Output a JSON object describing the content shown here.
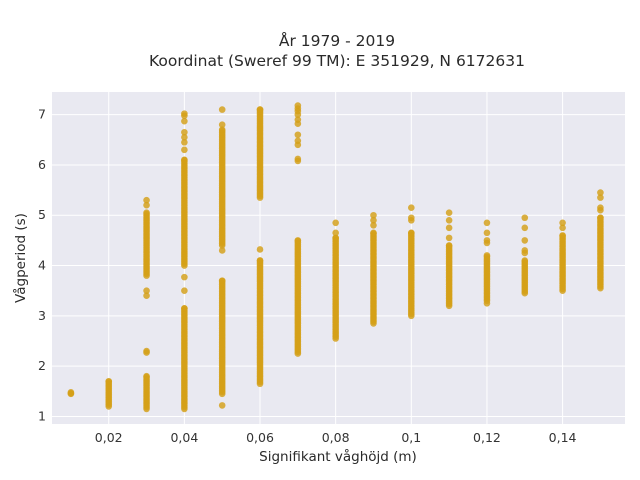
{
  "chart_data": {
    "type": "scatter",
    "title_line1": "År 1979 - 2019",
    "title_line2": "Koordinat (Sweref 99 TM): E 351929, N 6172631",
    "xlabel": "Signifikant våghöjd (m)",
    "ylabel": "Vågperiod (s)",
    "xlim": [
      0.005,
      0.1565
    ],
    "ylim": [
      0.85,
      7.45
    ],
    "xticks": [
      {
        "value": 0.02,
        "label": "0,02"
      },
      {
        "value": 0.04,
        "label": "0,04"
      },
      {
        "value": 0.06,
        "label": "0,06"
      },
      {
        "value": 0.08,
        "label": "0,08"
      },
      {
        "value": 0.1,
        "label": "0,1"
      },
      {
        "value": 0.12,
        "label": "0,12"
      },
      {
        "value": 0.14,
        "label": "0,14"
      }
    ],
    "yticks": [
      {
        "value": 1,
        "label": "1"
      },
      {
        "value": 2,
        "label": "2"
      },
      {
        "value": 3,
        "label": "3"
      },
      {
        "value": 4,
        "label": "4"
      },
      {
        "value": 5,
        "label": "5"
      },
      {
        "value": 6,
        "label": "6"
      },
      {
        "value": 7,
        "label": "7"
      }
    ],
    "grid": true,
    "marker_color": "#d4a017",
    "plot_bgcolor": "#e9e9f1",
    "grid_color": "#ffffff",
    "columns": [
      {
        "x": 0.01,
        "ranges": [
          [
            1.45,
            1.48
          ]
        ],
        "isolated": [
          1.46
        ]
      },
      {
        "x": 0.02,
        "ranges": [
          [
            1.2,
            1.7
          ]
        ],
        "isolated": []
      },
      {
        "x": 0.03,
        "ranges": [
          [
            1.15,
            1.8
          ],
          [
            3.8,
            5.05
          ]
        ],
        "isolated": [
          2.27,
          2.3,
          3.4,
          3.5,
          5.2,
          5.3
        ]
      },
      {
        "x": 0.04,
        "ranges": [
          [
            1.15,
            3.15
          ],
          [
            4.0,
            6.1
          ]
        ],
        "isolated": [
          3.5,
          3.77,
          6.3,
          6.45,
          6.55,
          6.65,
          6.87,
          6.98,
          7.02
        ]
      },
      {
        "x": 0.05,
        "ranges": [
          [
            1.45,
            3.7
          ],
          [
            4.4,
            6.7
          ]
        ],
        "isolated": [
          1.22,
          4.3,
          6.8,
          7.1
        ]
      },
      {
        "x": 0.06,
        "ranges": [
          [
            1.65,
            4.1
          ],
          [
            5.35,
            7.1
          ]
        ],
        "isolated": [
          4.32
        ]
      },
      {
        "x": 0.07,
        "ranges": [
          [
            2.25,
            4.5
          ]
        ],
        "isolated": [
          6.08,
          6.12,
          6.4,
          6.48,
          6.6,
          6.82,
          6.9,
          7.0,
          7.07,
          7.12,
          7.18
        ]
      },
      {
        "x": 0.08,
        "ranges": [
          [
            2.55,
            4.55
          ]
        ],
        "isolated": [
          4.65,
          4.85
        ]
      },
      {
        "x": 0.09,
        "ranges": [
          [
            2.85,
            4.65
          ]
        ],
        "isolated": [
          4.8,
          4.9,
          5.0
        ]
      },
      {
        "x": 0.1,
        "ranges": [
          [
            3.0,
            4.65
          ]
        ],
        "isolated": [
          4.9,
          4.95,
          5.15
        ]
      },
      {
        "x": 0.11,
        "ranges": [
          [
            3.2,
            4.4
          ]
        ],
        "isolated": [
          4.55,
          4.75,
          4.9,
          5.05
        ]
      },
      {
        "x": 0.12,
        "ranges": [
          [
            3.3,
            4.2
          ]
        ],
        "isolated": [
          3.25,
          4.45,
          4.5,
          4.65,
          4.85
        ]
      },
      {
        "x": 0.13,
        "ranges": [
          [
            3.45,
            4.1
          ]
        ],
        "isolated": [
          4.25,
          4.3,
          4.5,
          4.75,
          4.95
        ]
      },
      {
        "x": 0.14,
        "ranges": [
          [
            3.5,
            4.6
          ]
        ],
        "isolated": [
          4.75,
          4.85
        ]
      },
      {
        "x": 0.15,
        "ranges": [
          [
            3.55,
            4.95
          ]
        ],
        "isolated": [
          5.1,
          5.15,
          5.35,
          5.45
        ]
      }
    ]
  }
}
